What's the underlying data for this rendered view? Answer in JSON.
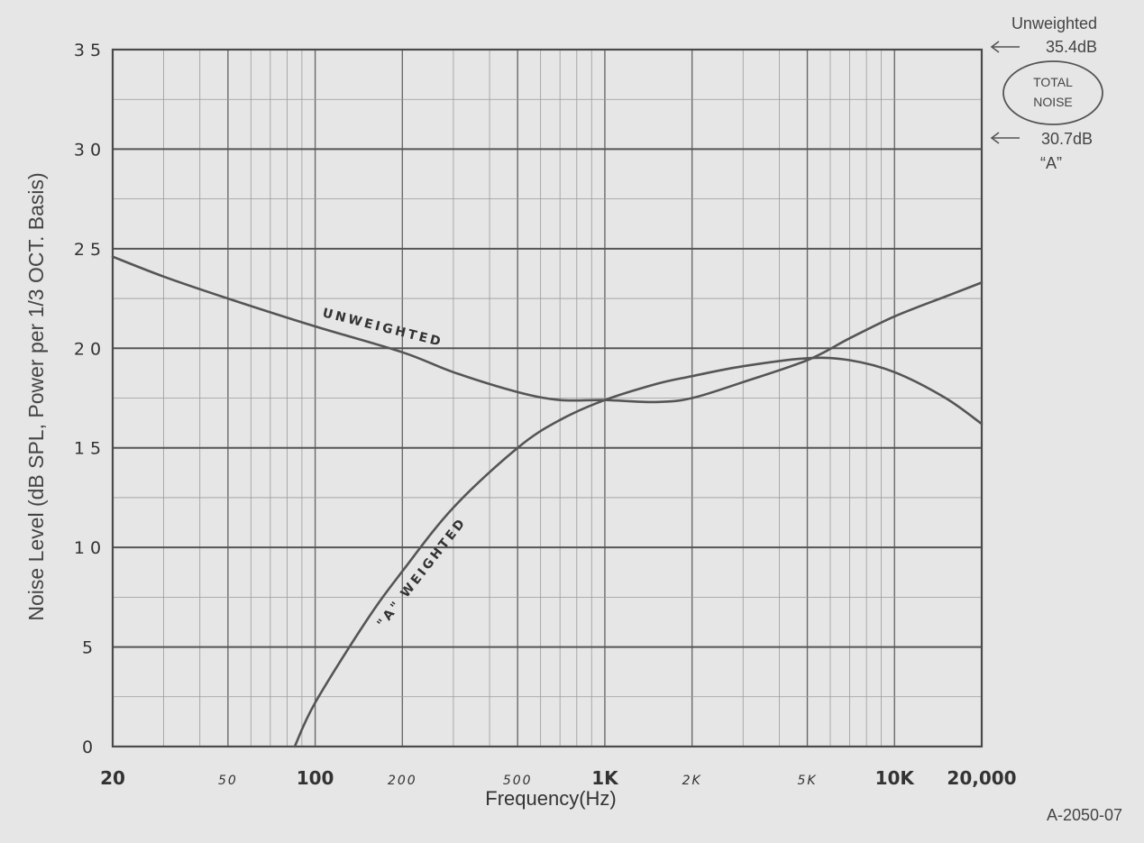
{
  "chart_data": {
    "type": "line",
    "title": "",
    "xlabel": "Frequency(Hz)",
    "ylabel": "Noise Level (dB SPL, Power per 1/3 OCT. Basis)",
    "x_scale": "log",
    "xlim": [
      20,
      20000
    ],
    "ylim": [
      0,
      35
    ],
    "y_ticks": [
      "0",
      "5",
      "10",
      "15",
      "20",
      "25",
      "30",
      "35"
    ],
    "x_tick_labels": [
      {
        "value": 20,
        "label": "20",
        "style": "major"
      },
      {
        "value": 50,
        "label": "50",
        "style": "minor"
      },
      {
        "value": 100,
        "label": "100",
        "style": "major"
      },
      {
        "value": 200,
        "label": "200",
        "style": "minor"
      },
      {
        "value": 500,
        "label": "500",
        "style": "minor"
      },
      {
        "value": 1000,
        "label": "1K",
        "style": "major"
      },
      {
        "value": 2000,
        "label": "2K",
        "style": "minor"
      },
      {
        "value": 5000,
        "label": "5K",
        "style": "minor"
      },
      {
        "value": 10000,
        "label": "10K",
        "style": "major"
      },
      {
        "value": 20000,
        "label": "20,000",
        "style": "major"
      }
    ],
    "grid": true,
    "series": [
      {
        "name": "UNWEIGHTED",
        "color": "#555555",
        "x": [
          20,
          30,
          50,
          100,
          200,
          300,
          500,
          700,
          1000,
          1500,
          2000,
          3000,
          5000,
          7000,
          10000,
          15000,
          20000
        ],
        "y": [
          24.6,
          23.6,
          22.5,
          21.1,
          19.8,
          18.8,
          17.8,
          17.4,
          17.4,
          17.3,
          17.5,
          18.3,
          19.4,
          20.5,
          21.6,
          22.6,
          23.3
        ]
      },
      {
        "name": "\"A\" WEIGHTED",
        "color": "#555555",
        "x": [
          85,
          100,
          150,
          200,
          300,
          500,
          700,
          1000,
          1500,
          2000,
          3000,
          5000,
          7000,
          10000,
          15000,
          20000
        ],
        "y": [
          0,
          2.2,
          6.3,
          8.8,
          12.0,
          15.0,
          16.4,
          17.4,
          18.2,
          18.6,
          19.1,
          19.5,
          19.4,
          18.8,
          17.5,
          16.2
        ]
      }
    ],
    "annotations": {
      "unweighted_label": "UNWEIGHTED",
      "a_weighted_label": "\"A\" WEIGHTED",
      "total_noise_label": "TOTAL NOISE",
      "total_noise_line1": "TOTAL",
      "total_noise_line2": "NOISE",
      "unweighted_total_title": "Unweighted",
      "unweighted_total_value": "35.4dB",
      "a_total_value": "30.7dB",
      "a_total_title": "“A”",
      "figure_id": "A-2050-07"
    }
  }
}
